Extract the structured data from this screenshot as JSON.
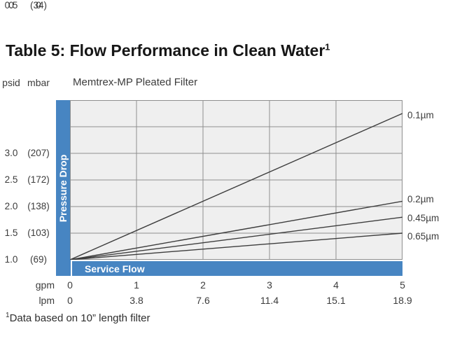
{
  "page": {
    "title": "Table 5: Flow Performance in Clean Water",
    "title_sup": "1",
    "footnote_sup": "1",
    "footnote": "Data based on 10” length filter"
  },
  "chart": {
    "subtitle": "Memtrex-MP Pleated Filter",
    "pressure_drop_label": "Pressure Drop",
    "service_flow_label": "Service Flow"
  },
  "axis": {
    "y_unit_1": "psid",
    "y_unit_2": "mbar",
    "x_unit_1": "gpm",
    "x_unit_2": "lpm",
    "y_ticks": [
      {
        "psid": "3.0",
        "mbar": "(207)"
      },
      {
        "psid": "2.5",
        "mbar": "(172)"
      },
      {
        "psid": "2.0",
        "mbar": "(138)"
      },
      {
        "psid": "1.5",
        "mbar": "(103)"
      },
      {
        "psid": "1.0",
        "mbar": "(69)"
      },
      {
        "psid": "0.5",
        "mbar": "(34)"
      },
      {
        "psid": "0",
        "mbar": "0"
      }
    ],
    "x_ticks": [
      {
        "gpm": "0",
        "lpm": "0"
      },
      {
        "gpm": "1",
        "lpm": "3.8"
      },
      {
        "gpm": "2",
        "lpm": "7.6"
      },
      {
        "gpm": "3",
        "lpm": "11.4"
      },
      {
        "gpm": "4",
        "lpm": "15.1"
      },
      {
        "gpm": "5",
        "lpm": "18.9"
      }
    ]
  },
  "chart_data": {
    "type": "line",
    "title": "Memtrex-MP Pleated Filter",
    "xlabel": "Service Flow",
    "ylabel": "Pressure Drop",
    "x_units": [
      "gpm",
      "lpm"
    ],
    "y_units": [
      "psid",
      "mbar"
    ],
    "xlim": [
      0,
      5
    ],
    "ylim": [
      0,
      3
    ],
    "grid": true,
    "x_gridlines": [
      1,
      2,
      3,
      4
    ],
    "y_gridlines": [
      0.5,
      1.0,
      1.5,
      2.0,
      2.5
    ],
    "x_ticks_gpm": [
      0,
      1,
      2,
      3,
      4,
      5
    ],
    "x_ticks_lpm": [
      0,
      3.8,
      7.6,
      11.4,
      15.1,
      18.9
    ],
    "y_ticks_psid": [
      3.0,
      2.5,
      2.0,
      1.5,
      1.0,
      0.5,
      0
    ],
    "y_ticks_mbar": [
      207,
      172,
      138,
      103,
      69,
      34,
      0
    ],
    "legend_position": "right",
    "series": [
      {
        "name": "0.1µm",
        "x": [
          0,
          5
        ],
        "y": [
          0,
          2.75
        ]
      },
      {
        "name": "0.2µm",
        "x": [
          0,
          5
        ],
        "y": [
          0,
          1.1
        ]
      },
      {
        "name": "0.45µm",
        "x": [
          0,
          5
        ],
        "y": [
          0,
          0.8
        ]
      },
      {
        "name": "0.65µm",
        "x": [
          0,
          5
        ],
        "y": [
          0,
          0.5
        ]
      }
    ]
  },
  "colors": {
    "accent_blue": "#4785c2",
    "plot_bg": "#efefef",
    "grid": "#8f8f8f",
    "line": "#3d3d3d"
  }
}
